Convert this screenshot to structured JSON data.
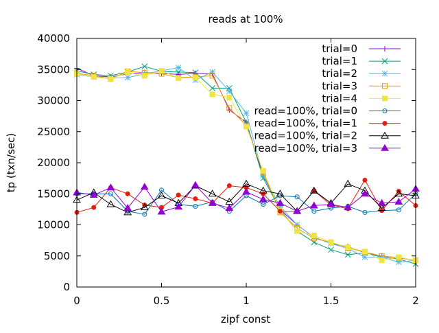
{
  "chart_data": {
    "type": "line",
    "title": "reads at 100%",
    "xlabel": "zipf const",
    "ylabel": "tp (txn/sec)",
    "xlim": [
      0,
      2
    ],
    "ylim": [
      0,
      40000
    ],
    "x_ticks": [
      0,
      0.5,
      1,
      1.5,
      2
    ],
    "x_tick_labels": [
      "0",
      "0.5",
      "1",
      "1.5",
      "2"
    ],
    "y_ticks": [
      0,
      5000,
      10000,
      15000,
      20000,
      25000,
      30000,
      35000,
      40000
    ],
    "y_tick_labels": [
      "0",
      "5000",
      "10000",
      "15000",
      "20000",
      "25000",
      "30000",
      "35000",
      "40000"
    ],
    "grid": false,
    "legend_position": "top-right",
    "x": [
      0,
      0.1,
      0.2,
      0.3,
      0.4,
      0.5,
      0.6,
      0.7,
      0.8,
      0.9,
      1.0,
      1.1,
      1.2,
      1.3,
      1.4,
      1.5,
      1.6,
      1.7,
      1.8,
      1.9,
      2.0
    ],
    "series": [
      {
        "name": "trial=0",
        "color": "#9400d3",
        "marker": "plus",
        "values": [
          35200,
          34000,
          33800,
          34300,
          34500,
          34400,
          34200,
          34400,
          34300,
          28500,
          26500,
          18000,
          12500,
          10000,
          8000,
          7000,
          6500,
          5500,
          5000,
          4700,
          4300
        ]
      },
      {
        "name": "trial=1",
        "color": "#009e73",
        "marker": "cross",
        "values": [
          34800,
          34200,
          34000,
          34600,
          35500,
          34700,
          34600,
          34500,
          32000,
          32000,
          26500,
          17500,
          12500,
          9000,
          7200,
          6000,
          5200,
          5500,
          4800,
          4500,
          3700
        ]
      },
      {
        "name": "trial=2",
        "color": "#56b4e9",
        "marker": "asterisk",
        "values": [
          34200,
          33800,
          33600,
          33700,
          34300,
          34800,
          35300,
          33300,
          34600,
          31500,
          28000,
          18000,
          13000,
          10000,
          8000,
          7000,
          6200,
          4800,
          4800,
          4000,
          4300
        ]
      },
      {
        "name": "trial=3",
        "color": "#e69f00",
        "marker": "open-square",
        "values": [
          34400,
          34000,
          33500,
          34700,
          34500,
          34300,
          33700,
          33800,
          34000,
          28800,
          26000,
          18500,
          12000,
          9500,
          7800,
          7200,
          6300,
          5600,
          5000,
          4700,
          4300
        ]
      },
      {
        "name": "trial=4",
        "color": "#f0e442",
        "marker": "filled-square",
        "values": [
          34300,
          33800,
          33500,
          34500,
          34000,
          34800,
          33600,
          33700,
          31000,
          30500,
          25800,
          18700,
          12300,
          9000,
          8300,
          7200,
          6400,
          5700,
          4300,
          4800,
          4300
        ]
      },
      {
        "name": "read=100%, trial=0",
        "color": "#0072b2",
        "marker": "open-circle",
        "values": [
          15000,
          15000,
          15000,
          12200,
          11700,
          15600,
          13300,
          13000,
          13700,
          12200,
          14700,
          13300,
          14700,
          14500,
          12200,
          12700,
          13000,
          12000,
          12300,
          12400,
          15000
        ]
      },
      {
        "name": "read=100%, trial=1",
        "color": "#e51e10",
        "marker": "filled-circle",
        "values": [
          12000,
          12800,
          16000,
          15000,
          13200,
          12800,
          14800,
          14200,
          13500,
          16300,
          16000,
          15000,
          12200,
          12200,
          15500,
          13200,
          12600,
          17200,
          12300,
          15400,
          13100
        ]
      },
      {
        "name": "read=100%, trial=2",
        "color": "#000000",
        "marker": "open-triangle",
        "values": [
          14000,
          15200,
          13300,
          12000,
          12800,
          14700,
          13500,
          16300,
          15000,
          13700,
          16600,
          15500,
          15000,
          12200,
          15500,
          13500,
          16600,
          15500,
          12700,
          15000,
          14700
        ]
      },
      {
        "name": "read=100%, trial=3",
        "color": "#9400d3",
        "marker": "filled-triangle",
        "values": [
          15200,
          14800,
          16000,
          12700,
          16100,
          12100,
          12900,
          16400,
          13500,
          12700,
          15300,
          14100,
          13500,
          12200,
          13100,
          13300,
          12800,
          15000,
          13500,
          13700,
          15800
        ]
      }
    ]
  }
}
